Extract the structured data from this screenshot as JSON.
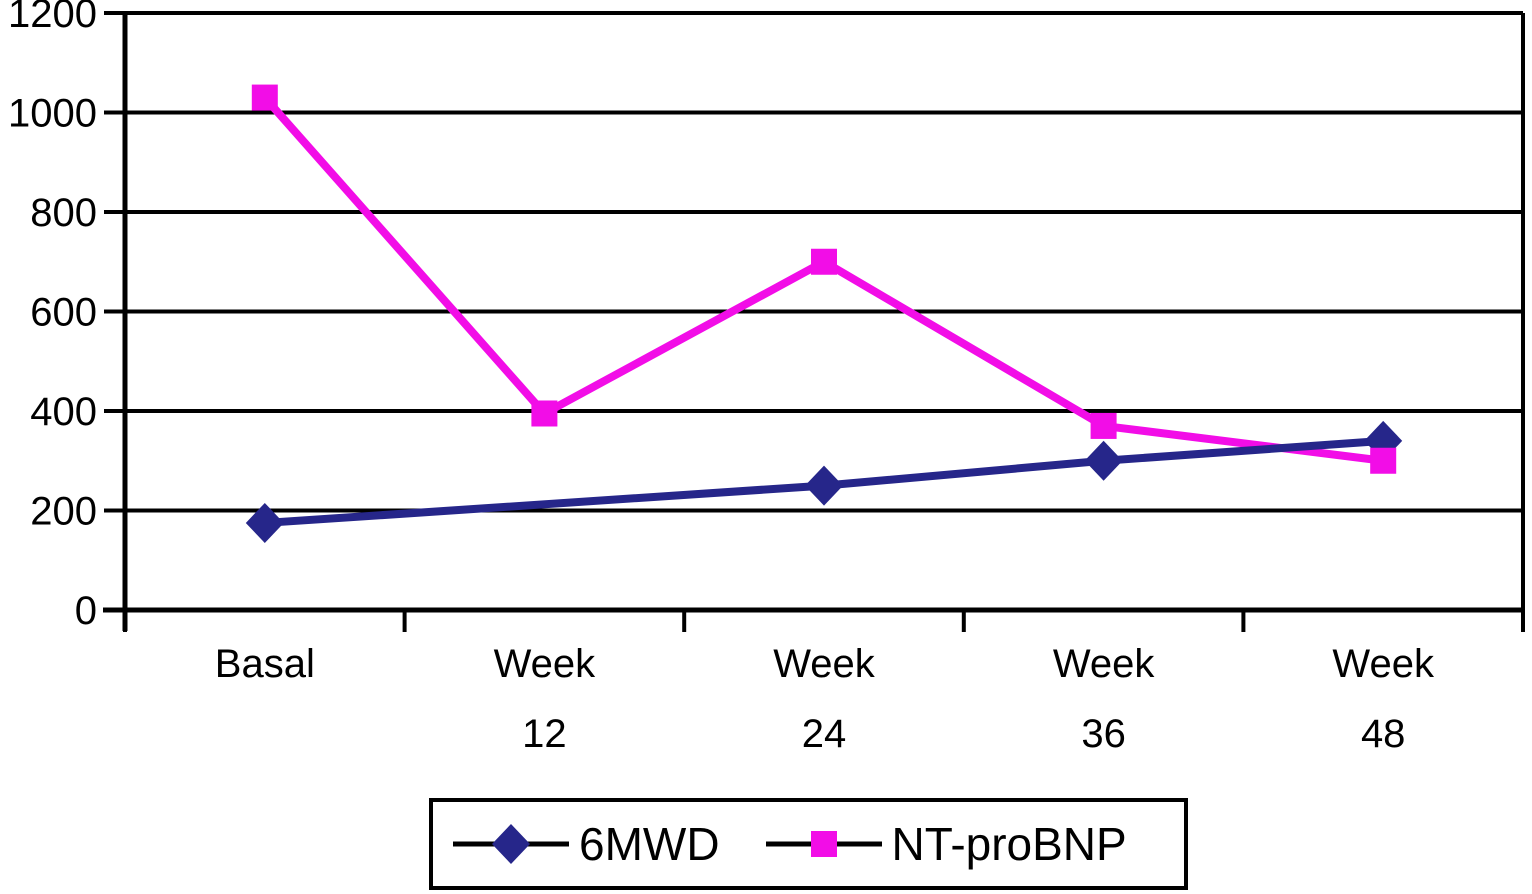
{
  "chart_data": {
    "type": "line",
    "title": "",
    "xlabel": "",
    "ylabel": "",
    "categories": [
      {
        "line1": "Basal",
        "line2": ""
      },
      {
        "line1": "Week",
        "line2": "12"
      },
      {
        "line1": "Week",
        "line2": "24"
      },
      {
        "line1": "Week",
        "line2": "36"
      },
      {
        "line1": "Week",
        "line2": "48"
      }
    ],
    "series": [
      {
        "name": "6MWD",
        "color": "#26268A",
        "marker": "diamond",
        "values": [
          175,
          null,
          250,
          300,
          340
        ],
        "note": "no marker shown at Week 12; line runs straight from Basal to Week 24"
      },
      {
        "name": "NT-proBNP",
        "color": "#F20DE7",
        "marker": "square",
        "values": [
          1030,
          395,
          700,
          370,
          300
        ]
      }
    ],
    "ylim": [
      0,
      1200
    ],
    "yticks": [
      0,
      200,
      400,
      600,
      800,
      1000,
      1200
    ],
    "grid": true,
    "gridline_color": "#000000",
    "axis_color": "#000000",
    "background": "#FFFFFF",
    "legend_position": "bottom",
    "legend_border_color": "#000000"
  }
}
